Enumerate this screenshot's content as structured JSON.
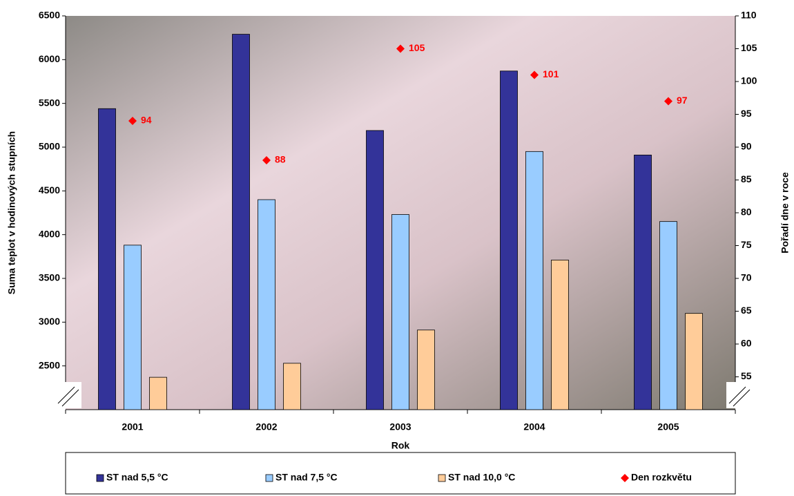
{
  "chart_data": {
    "type": "bar",
    "categories": [
      "2001",
      "2002",
      "2003",
      "2004",
      "2005"
    ],
    "x_label": "Rok",
    "y_label": "Suma teplot v hodinových stupních",
    "y2_label": "Pořadí dne v roce",
    "ylim": [
      2000,
      6500
    ],
    "yticks": [
      2500,
      3000,
      3500,
      4000,
      4500,
      5000,
      5500,
      6000,
      6500
    ],
    "y2lim": [
      50,
      110
    ],
    "y2ticks": [
      55,
      60,
      65,
      70,
      75,
      80,
      85,
      90,
      95,
      100,
      105,
      110
    ],
    "series": [
      {
        "name": "ST nad 5,5 °C",
        "color": "#333399",
        "values": [
          5440,
          6290,
          5190,
          5870,
          4910
        ]
      },
      {
        "name": "ST nad 7,5 °C",
        "color": "#99ccff",
        "values": [
          3880,
          4400,
          4230,
          4950,
          4150
        ]
      },
      {
        "name": "ST nad 10,0 °C",
        "color": "#ffcc99",
        "values": [
          2370,
          2530,
          2910,
          3710,
          3100
        ]
      },
      {
        "name": "Den rozkvětu",
        "color": "#ff0000",
        "axis": "y2",
        "marker": "diamond",
        "values": [
          94,
          88,
          105,
          101,
          97
        ]
      }
    ]
  }
}
